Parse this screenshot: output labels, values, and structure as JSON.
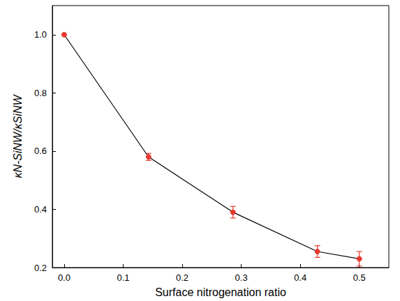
{
  "chart_data": {
    "type": "line",
    "x_label": "Surface nitrogenation ratio",
    "y_label": "κN-SiNW/κSiNW",
    "x": [
      0.0,
      0.143,
      0.286,
      0.429,
      0.5
    ],
    "values": [
      1.0,
      0.58,
      0.39,
      0.255,
      0.23
    ],
    "errors": [
      0.0,
      0.012,
      0.02,
      0.02,
      0.025
    ],
    "color": "#e8392f",
    "line_color": "#000000",
    "marker": "circle",
    "xlim": [
      -0.02,
      0.55
    ],
    "xticks": [
      {
        "value": 0,
        "label": "0.0"
      },
      0.1,
      0.2,
      0.3,
      0.4,
      0.5
    ],
    "ylim": [
      0.2,
      1.1
    ],
    "yticks": [
      0.2,
      0.4,
      0.6,
      0.8,
      {
        "value": 1,
        "label": "1.0"
      }
    ],
    "grid": false
  }
}
